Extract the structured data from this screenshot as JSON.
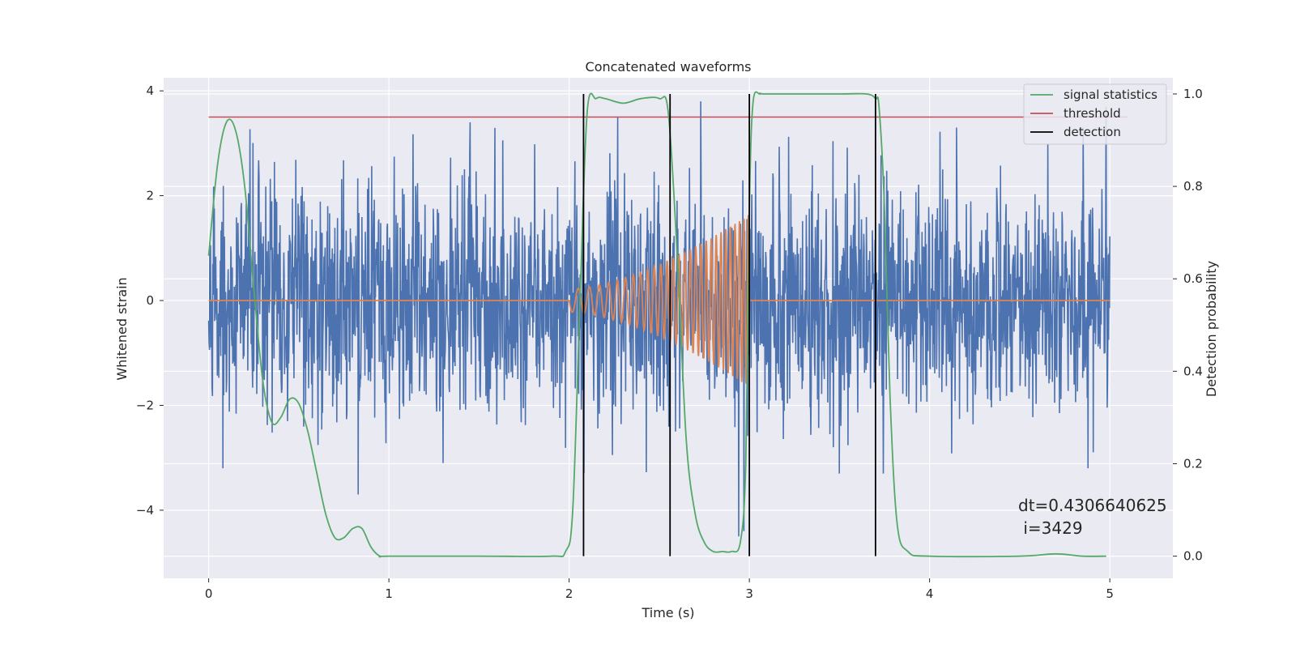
{
  "chart_data": {
    "type": "line",
    "title": "Concatenated waveforms",
    "xlabel": "Time (s)",
    "ylabel": "Whitened strain",
    "ylabel_right": "Detection probability",
    "xlim": [
      -0.25,
      5.35
    ],
    "ylim": [
      -5.3,
      4.25
    ],
    "ylim_right": [
      -0.048,
      1.035
    ],
    "x_ticks": [
      0,
      1,
      2,
      3,
      4,
      5
    ],
    "x_tick_labels": [
      "0",
      "1",
      "2",
      "3",
      "4",
      "5"
    ],
    "y_ticks": [
      -4,
      -2,
      0,
      2,
      4
    ],
    "y_tick_labels": [
      "−4",
      "−2",
      "0",
      "2",
      "4"
    ],
    "y_right_ticks": [
      0.0,
      0.2,
      0.4,
      0.6,
      0.8,
      1.0
    ],
    "y_right_tick_labels": [
      "0.0",
      "0.2",
      "0.4",
      "0.6",
      "0.8",
      "1.0"
    ],
    "grid": true,
    "legend_placement": "top-right",
    "legend": [
      {
        "label": "signal statistics",
        "color": "#55a868"
      },
      {
        "label": "threshold",
        "color": "#c44e52"
      },
      {
        "label": "detection",
        "color": "#000000"
      }
    ],
    "series": [
      {
        "name": "",
        "role": "whitened noisy strain",
        "axis": "left",
        "color": "#4c72b0",
        "x_range": [
          0,
          5
        ],
        "typical_amplitude": 1.4,
        "peak_values": [
          [
            0.08,
            -3.2
          ],
          [
            0.83,
            -3.7
          ],
          [
            1.3,
            -3.1
          ],
          [
            2.94,
            -4.5
          ],
          [
            2.97,
            -4.4
          ],
          [
            4.88,
            -3.2
          ],
          [
            4.98,
            3.7
          ],
          [
            2.73,
            3.8
          ],
          [
            2.27,
            3.5
          ],
          [
            1.45,
            3.4
          ]
        ]
      },
      {
        "name": "",
        "role": "injected chirp waveform",
        "axis": "left",
        "color": "#dd8452",
        "x_range": [
          0,
          5
        ],
        "chirp_start": 2.0,
        "chirp_end": 3.0,
        "amplitude_start": 0.22,
        "amplitude_end": 1.65,
        "frequency_start": 14,
        "frequency_end": 42
      },
      {
        "name": "signal statistics",
        "axis": "right",
        "color": "#55a868",
        "x": [
          0,
          0.05,
          0.1,
          0.15,
          0.2,
          0.25,
          0.3,
          0.35,
          0.4,
          0.45,
          0.5,
          0.55,
          0.6,
          0.65,
          0.7,
          0.75,
          0.8,
          0.85,
          0.9,
          0.95,
          1.0,
          1.5,
          1.9,
          1.98,
          2.02,
          2.06,
          2.1,
          2.15,
          2.2,
          2.3,
          2.4,
          2.5,
          2.55,
          2.6,
          2.65,
          2.7,
          2.75,
          2.8,
          2.85,
          2.9,
          2.95,
          2.98,
          3.0,
          3.02,
          3.06,
          3.1,
          3.5,
          3.65,
          3.7,
          3.72,
          3.75,
          3.78,
          3.82,
          3.88,
          4.0,
          4.5,
          4.7,
          4.85,
          4.98
        ],
        "y": [
          0.65,
          0.85,
          0.94,
          0.92,
          0.8,
          0.58,
          0.38,
          0.29,
          0.3,
          0.34,
          0.33,
          0.27,
          0.18,
          0.09,
          0.04,
          0.04,
          0.06,
          0.06,
          0.02,
          0.0,
          0.0,
          0.0,
          0.0,
          0.01,
          0.1,
          0.55,
          0.96,
          0.99,
          0.99,
          0.98,
          0.99,
          0.99,
          0.96,
          0.65,
          0.25,
          0.09,
          0.03,
          0.01,
          0.01,
          0.01,
          0.03,
          0.2,
          0.75,
          0.98,
          1.0,
          1.0,
          1.0,
          1.0,
          0.99,
          0.97,
          0.75,
          0.35,
          0.07,
          0.01,
          0.0,
          0.0,
          0.005,
          0.0,
          0.0
        ]
      },
      {
        "name": "threshold",
        "axis": "right",
        "color": "#c44e52",
        "x": [
          0,
          5.1
        ],
        "y": [
          0.95,
          0.95
        ]
      }
    ],
    "detections": {
      "name": "detection",
      "color": "#000000",
      "x": [
        2.08,
        2.56,
        3.0,
        3.7
      ],
      "y_range_right": [
        0.0,
        1.0
      ]
    },
    "annotation": {
      "lines": [
        "dt=0.4306640625",
        " i=3429"
      ]
    }
  }
}
